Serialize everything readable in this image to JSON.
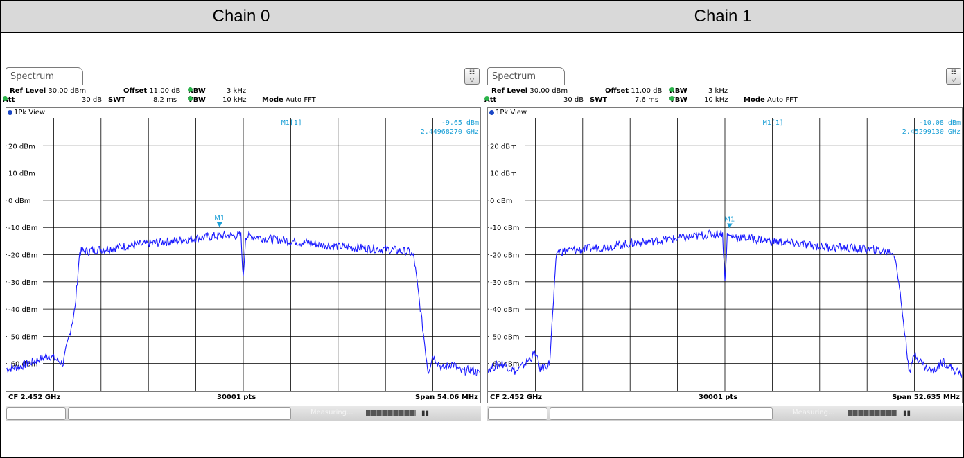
{
  "headers": [
    "Chain 0",
    "Chain 1"
  ],
  "colors": {
    "trace": "#1a1aff",
    "marker": "#1a9fd6",
    "grid": "#000000",
    "header_bg": "#d9d9d9"
  },
  "chart_data": [
    {
      "type": "line",
      "tab": "Spectrum",
      "view": "1Pk View",
      "ref_level_label": "Ref Level",
      "ref_level": "30.00 dBm",
      "offset_label": "Offset",
      "offset": "11.00 dB",
      "rbw_label": "RBW",
      "rbw": "3 kHz",
      "att_label": "Att",
      "att": "30 dB",
      "swt_label": "SWT",
      "swt": "8.2 ms",
      "vbw_label": "VBW",
      "vbw": "10 kHz",
      "mode_label": "Mode",
      "mode": "Auto FFT",
      "marker_label": "M1[1]",
      "marker_level": "-9.65 dBm",
      "marker_freq": "2.44968270 GHz",
      "marker_name": "M1",
      "footer_left": "CF 2.452 GHz",
      "footer_mid": "30001 pts",
      "footer_right": "Span 54.06 MHz",
      "status_text": "Measuring...",
      "yticks": [
        "20 dBm",
        "10 dBm",
        "0 dBm",
        "-10 dBm",
        "-20 dBm",
        "-30 dBm",
        "-40 dBm",
        "-50 dBm",
        "-60 dBm"
      ],
      "ylim": [
        -70,
        30
      ],
      "xlim": [
        0,
        10
      ],
      "marker_x": 4.5,
      "marker_y": -9.65,
      "series": [
        {
          "x": [
            0,
            0.3,
            0.6,
            0.9,
            1.2,
            1.3,
            1.45,
            1.55,
            2,
            3,
            4,
            4.5,
            4.95,
            5,
            5.05,
            5.5,
            6,
            7,
            8,
            8.5,
            8.6,
            8.75,
            8.9,
            9,
            9.2,
            9.4,
            9.6,
            9.8,
            10
          ],
          "y": [
            -62,
            -61,
            -59,
            -57,
            -60,
            -52,
            -40,
            -19,
            -18,
            -16,
            -14,
            -13,
            -13,
            -29,
            -13,
            -14,
            -15,
            -17,
            -18,
            -19,
            -21,
            -42,
            -63,
            -57,
            -62,
            -60,
            -63,
            -62,
            -64
          ]
        }
      ]
    },
    {
      "type": "line",
      "tab": "Spectrum",
      "view": "1Pk View",
      "ref_level_label": "Ref Level",
      "ref_level": "30.00 dBm",
      "offset_label": "Offset",
      "offset": "11.00 dB",
      "rbw_label": "RBW",
      "rbw": "3 kHz",
      "att_label": "Att",
      "att": "30 dB",
      "swt_label": "SWT",
      "swt": "7.6 ms",
      "vbw_label": "VBW",
      "vbw": "10 kHz",
      "mode_label": "Mode",
      "mode": "Auto FFT",
      "marker_label": "M1[1]",
      "marker_level": "-10.08 dBm",
      "marker_freq": "2.45299130 GHz",
      "marker_name": "M1",
      "footer_left": "CF 2.452 GHz",
      "footer_mid": "30001 pts",
      "footer_right": "Span 52.635 MHz",
      "status_text": "Measuring...",
      "yticks": [
        "20 dBm",
        "10 dBm",
        "0 dBm",
        "-10 dBm",
        "-20 dBm",
        "-30 dBm",
        "-40 dBm",
        "-50 dBm",
        "-60 dBm"
      ],
      "ylim": [
        -70,
        30
      ],
      "xlim": [
        0,
        10
      ],
      "marker_x": 5.1,
      "marker_y": -10.08,
      "series": [
        {
          "x": [
            0,
            0.3,
            0.6,
            0.9,
            1.0,
            1.1,
            1.3,
            1.45,
            2,
            3,
            4,
            4.5,
            4.95,
            5.0,
            5.05,
            5.5,
            6,
            7,
            8,
            8.5,
            8.6,
            8.75,
            8.9,
            9,
            9.2,
            9.4,
            9.6,
            9.8,
            10
          ],
          "y": [
            -62,
            -60,
            -63,
            -58,
            -56,
            -62,
            -60,
            -19,
            -18,
            -16,
            -14,
            -13,
            -12,
            -30,
            -13,
            -14,
            -15,
            -17,
            -18,
            -19,
            -21,
            -42,
            -64,
            -56,
            -61,
            -63,
            -59,
            -62,
            -64
          ]
        }
      ]
    }
  ]
}
